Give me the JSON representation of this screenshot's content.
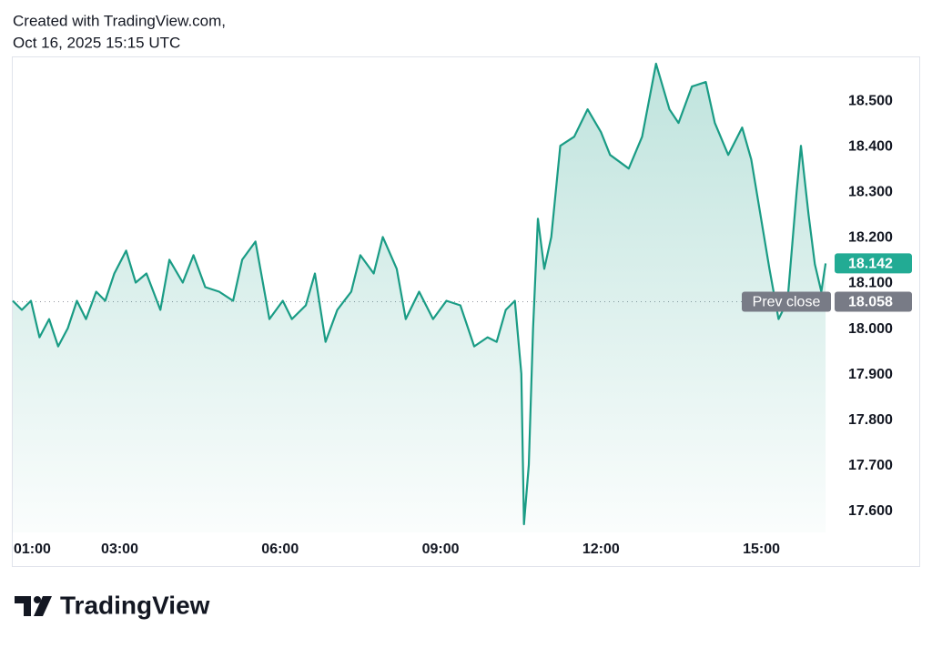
{
  "chart_data": {
    "type": "area",
    "title": "Created with TradingView.com,",
    "subtitle": "Oct 16, 2025 15:15 UTC",
    "brand": "TradingView",
    "prev_close_label": "Prev close",
    "prev_close": 18.058,
    "series": [
      {
        "color": "#1a9c85",
        "x": [
          1.0,
          1.17,
          1.34,
          1.5,
          1.68,
          1.85,
          2.03,
          2.2,
          2.37,
          2.56,
          2.73,
          2.9,
          3.12,
          3.3,
          3.5,
          3.76,
          3.93,
          4.18,
          4.38,
          4.6,
          4.86,
          5.12,
          5.29,
          5.54,
          5.8,
          6.05,
          6.22,
          6.48,
          6.65,
          6.85,
          7.07,
          7.33,
          7.5,
          7.75,
          7.92,
          8.18,
          8.35,
          8.6,
          8.86,
          9.11,
          9.37,
          9.63,
          9.88,
          10.05,
          10.22,
          10.39,
          10.51,
          10.56,
          10.65,
          10.73,
          10.82,
          10.94,
          11.07,
          11.24,
          11.5,
          11.75,
          12.0,
          12.17,
          12.52,
          12.77,
          13.03,
          13.28,
          13.45,
          13.7,
          13.96,
          14.13,
          14.38,
          14.64,
          14.81,
          14.98,
          15.15,
          15.32,
          15.49,
          15.66,
          15.74,
          15.88,
          16.0,
          16.12,
          16.2
        ],
        "values": [
          18.06,
          18.04,
          18.06,
          17.98,
          18.02,
          17.96,
          18.0,
          18.06,
          18.02,
          18.08,
          18.06,
          18.12,
          18.17,
          18.1,
          18.12,
          18.04,
          18.15,
          18.1,
          18.16,
          18.09,
          18.08,
          18.06,
          18.15,
          18.19,
          18.02,
          18.06,
          18.02,
          18.05,
          18.12,
          17.97,
          18.04,
          18.08,
          18.16,
          18.12,
          18.2,
          18.13,
          18.02,
          18.08,
          18.02,
          18.06,
          18.05,
          17.96,
          17.98,
          17.97,
          18.04,
          18.06,
          17.9,
          17.57,
          17.7,
          18.0,
          18.24,
          18.13,
          18.2,
          18.4,
          18.42,
          18.48,
          18.43,
          18.38,
          18.35,
          18.42,
          18.58,
          18.48,
          18.45,
          18.53,
          18.54,
          18.45,
          18.38,
          18.44,
          18.37,
          18.25,
          18.13,
          18.02,
          18.06,
          18.3,
          18.4,
          18.25,
          18.14,
          18.08,
          18.142
        ]
      }
    ],
    "xlim": [
      1,
      16.25
    ],
    "xticks": [
      {
        "value": 1,
        "label": "01:00"
      },
      {
        "value": 3,
        "label": "03:00"
      },
      {
        "value": 6,
        "label": "06:00"
      },
      {
        "value": 9,
        "label": "09:00"
      },
      {
        "value": 12,
        "label": "12:00"
      },
      {
        "value": 15,
        "label": "15:00"
      }
    ],
    "ylim": [
      17.552,
      18.596
    ],
    "yticks": [
      {
        "value": 17.6,
        "label": "17.600"
      },
      {
        "value": 17.7,
        "label": "17.700"
      },
      {
        "value": 17.8,
        "label": "17.800"
      },
      {
        "value": 17.9,
        "label": "17.900"
      },
      {
        "value": 18.0,
        "label": "18.000"
      },
      {
        "value": 18.1,
        "label": "18.100"
      },
      {
        "value": 18.2,
        "label": "18.200"
      },
      {
        "value": 18.3,
        "label": "18.300"
      },
      {
        "value": 18.4,
        "label": "18.400"
      },
      {
        "value": 18.5,
        "label": "18.500"
      }
    ],
    "last_color": "#22ab94",
    "prev_color": "#787b86"
  }
}
